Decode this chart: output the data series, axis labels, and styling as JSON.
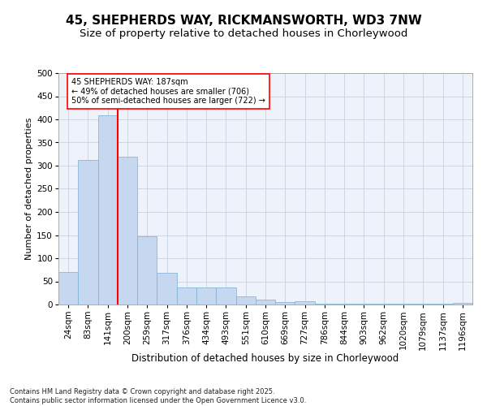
{
  "title_line1": "45, SHEPHERDS WAY, RICKMANSWORTH, WD3 7NW",
  "title_line2": "Size of property relative to detached houses in Chorleywood",
  "xlabel": "Distribution of detached houses by size in Chorleywood",
  "ylabel": "Number of detached properties",
  "categories": [
    "24sqm",
    "83sqm",
    "141sqm",
    "200sqm",
    "259sqm",
    "317sqm",
    "376sqm",
    "434sqm",
    "493sqm",
    "551sqm",
    "610sqm",
    "669sqm",
    "727sqm",
    "786sqm",
    "844sqm",
    "903sqm",
    "962sqm",
    "1020sqm",
    "1079sqm",
    "1137sqm",
    "1196sqm"
  ],
  "values": [
    70,
    312,
    408,
    320,
    147,
    68,
    36,
    36,
    36,
    17,
    10,
    5,
    7,
    1,
    1,
    1,
    1,
    1,
    1,
    1,
    3
  ],
  "bar_color": "#c5d8f0",
  "bar_edge_color": "#7bafd4",
  "vline_color": "red",
  "vline_index": 2.5,
  "annotation_text": "45 SHEPHERDS WAY: 187sqm\n← 49% of detached houses are smaller (706)\n50% of semi-detached houses are larger (722) →",
  "annotation_box_facecolor": "white",
  "annotation_box_edgecolor": "red",
  "bg_color": "#eef2fa",
  "grid_color": "#c8d0e0",
  "footer": "Contains HM Land Registry data © Crown copyright and database right 2025.\nContains public sector information licensed under the Open Government Licence v3.0.",
  "ylim": [
    0,
    500
  ],
  "yticks": [
    0,
    50,
    100,
    150,
    200,
    250,
    300,
    350,
    400,
    450,
    500
  ],
  "title1_fontsize": 11,
  "title2_fontsize": 9.5,
  "xlabel_fontsize": 8.5,
  "ylabel_fontsize": 8,
  "tick_fontsize": 7.5,
  "ann_fontsize": 7,
  "footer_fontsize": 6
}
